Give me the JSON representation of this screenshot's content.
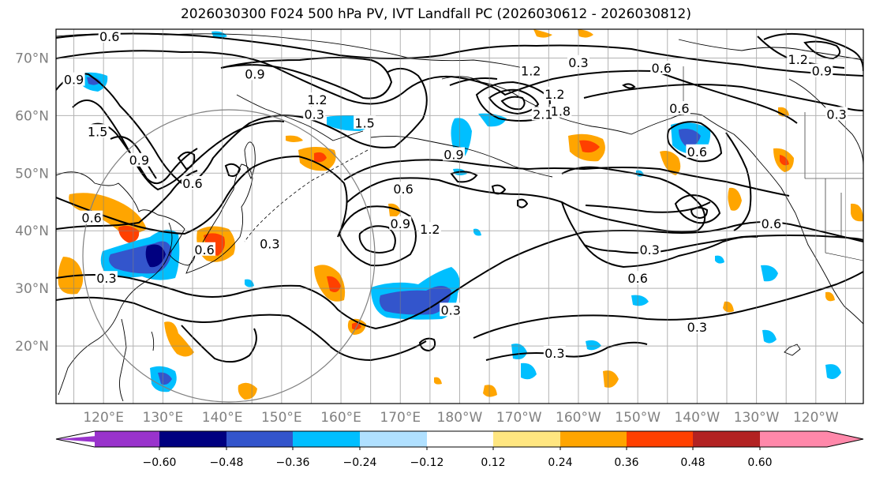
{
  "title": "2026030300 F024 500 hPa PV, IVT Landfall PC (2026030612 - 2026030812)",
  "chart_data": {
    "type": "heatmap",
    "title": "2026030300 F024 500 hPa PV, IVT Landfall PC (2026030612 - 2026030812)",
    "projection": "Pacific basin, longitude 112°E to 112°W, latitude 10°N to 75°N",
    "xlim_deg_east": [
      112,
      248
    ],
    "ylim_deg_north": [
      10,
      75
    ],
    "x_ticks": [
      {
        "lon": 120,
        "label": "120°E"
      },
      {
        "lon": 130,
        "label": "130°E"
      },
      {
        "lon": 140,
        "label": "140°E"
      },
      {
        "lon": 150,
        "label": "150°E"
      },
      {
        "lon": 160,
        "label": "160°E"
      },
      {
        "lon": 170,
        "label": "170°E"
      },
      {
        "lon": 180,
        "label": "180°W"
      },
      {
        "lon": 190,
        "label": "170°W"
      },
      {
        "lon": 200,
        "label": "160°W"
      },
      {
        "lon": 210,
        "label": "150°W"
      },
      {
        "lon": 220,
        "label": "140°W"
      },
      {
        "lon": 230,
        "label": "130°W"
      },
      {
        "lon": 240,
        "label": "120°W"
      }
    ],
    "y_ticks": [
      {
        "lat": 20,
        "label": "20°N"
      },
      {
        "lat": 30,
        "label": "30°N"
      },
      {
        "lat": 40,
        "label": "40°N"
      },
      {
        "lat": 50,
        "label": "50°N"
      },
      {
        "lat": 60,
        "label": "60°N"
      },
      {
        "lat": 70,
        "label": "70°N"
      }
    ],
    "colorbar": {
      "levels": [
        -0.6,
        -0.48,
        -0.36,
        -0.24,
        -0.12,
        0.12,
        0.24,
        0.36,
        0.48,
        0.6
      ],
      "labels": [
        "−0.60",
        "−0.48",
        "−0.36",
        "−0.24",
        "−0.12",
        "0.12",
        "0.24",
        "0.36",
        "0.48",
        "0.60"
      ],
      "colors": [
        "#9933cc",
        "#000080",
        "#3355cc",
        "#00bfff",
        "#b0e0ff",
        "#ffffff",
        "#ffe680",
        "#ffa500",
        "#ff4000",
        "#b22222",
        "#ff88aa"
      ],
      "extend": "both"
    },
    "contour_labels": [
      {
        "text": "0.6",
        "lon": 121,
        "lat": 73.5
      },
      {
        "text": "0.9",
        "lon": 145.5,
        "lat": 67
      },
      {
        "text": "1.2",
        "lon": 156,
        "lat": 62.5
      },
      {
        "text": "1.5",
        "lon": 164,
        "lat": 58.5
      },
      {
        "text": "0.3",
        "lon": 155.5,
        "lat": 60
      },
      {
        "text": "0.9",
        "lon": 115,
        "lat": 66
      },
      {
        "text": "1.5",
        "lon": 119,
        "lat": 57
      },
      {
        "text": "0.9",
        "lon": 126,
        "lat": 52
      },
      {
        "text": "0.6",
        "lon": 135,
        "lat": 48
      },
      {
        "text": "0.6",
        "lon": 137,
        "lat": 36.5
      },
      {
        "text": "0.6",
        "lon": 118,
        "lat": 42
      },
      {
        "text": "0.3",
        "lon": 120.5,
        "lat": 31.5
      },
      {
        "text": "0.3",
        "lon": 148,
        "lat": 37.5
      },
      {
        "text": "0.9",
        "lon": 170,
        "lat": 41
      },
      {
        "text": "1.2",
        "lon": 175,
        "lat": 40
      },
      {
        "text": "0.6",
        "lon": 170.5,
        "lat": 47
      },
      {
        "text": "0.9",
        "lon": 179,
        "lat": 53
      },
      {
        "text": "0.3",
        "lon": 178.5,
        "lat": 26
      },
      {
        "text": "1.2",
        "lon": 192,
        "lat": 67.5
      },
      {
        "text": "0.3",
        "lon": 200,
        "lat": 69
      },
      {
        "text": "1.2",
        "lon": 196,
        "lat": 63.5
      },
      {
        "text": "2.1",
        "lon": 194,
        "lat": 60
      },
      {
        "text": "1.8",
        "lon": 197,
        "lat": 60.5
      },
      {
        "text": "0.6",
        "lon": 214,
        "lat": 68
      },
      {
        "text": "0.6",
        "lon": 217,
        "lat": 61
      },
      {
        "text": "0.6",
        "lon": 220,
        "lat": 53.5
      },
      {
        "text": "0.6",
        "lon": 232.5,
        "lat": 41
      },
      {
        "text": "0.3",
        "lon": 212,
        "lat": 36.5
      },
      {
        "text": "0.6",
        "lon": 210,
        "lat": 31.5
      },
      {
        "text": "0.3",
        "lon": 220,
        "lat": 23
      },
      {
        "text": "0.3",
        "lon": 196,
        "lat": 18.5
      },
      {
        "text": "0.3",
        "lon": 243.5,
        "lat": 60
      },
      {
        "text": "1.2",
        "lon": 237,
        "lat": 69.5
      },
      {
        "text": "0.9",
        "lon": 241,
        "lat": 67.5
      }
    ]
  }
}
